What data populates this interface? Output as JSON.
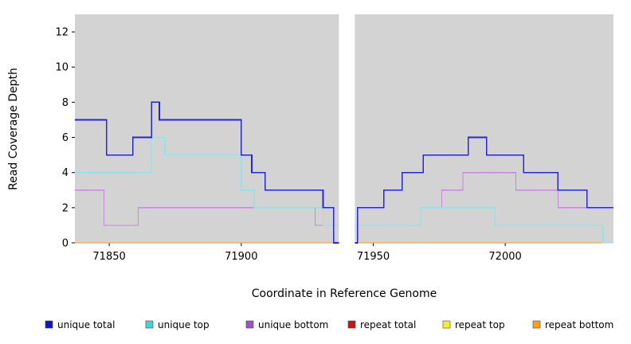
{
  "chart_data": {
    "type": "line",
    "style": "step",
    "title": "",
    "xlabel": "Coordinate in Reference Genome",
    "ylabel": "Read Coverage Depth",
    "xlim": [
      71837,
      72041
    ],
    "ylim": [
      0,
      13
    ],
    "xticks": [
      71850,
      71900,
      71950,
      72000
    ],
    "yticks": [
      0,
      2,
      4,
      6,
      8,
      10,
      12
    ],
    "panel_color": "#d3d3d3",
    "background_color": "#ffffff",
    "gap_x": [
      71937,
      71943
    ],
    "legend": [
      {
        "label": "unique total",
        "color": "#1515c8"
      },
      {
        "label": "unique top",
        "color": "#3fd6d6"
      },
      {
        "label": "unique bottom",
        "color": "#a050cc"
      },
      {
        "label": "repeat total",
        "color": "#c81616"
      },
      {
        "label": "repeat top",
        "color": "#f2ef30"
      },
      {
        "label": "repeat bottom",
        "color": "#ff9e1b"
      }
    ],
    "series": [
      {
        "name": "repeat total",
        "color": "#c81616",
        "width": 1.2,
        "segments": [
          {
            "steps": [
              [
                71837,
                0
              ]
            ],
            "end": 71937
          },
          {
            "steps": [
              [
                71943,
                0
              ]
            ],
            "end": 72041
          }
        ]
      },
      {
        "name": "repeat top",
        "color": "#f2ef30",
        "width": 1.2,
        "segments": [
          {
            "steps": [
              [
                71837,
                0
              ]
            ],
            "end": 71937
          },
          {
            "steps": [
              [
                71943,
                0
              ]
            ],
            "end": 72041
          }
        ]
      },
      {
        "name": "repeat bottom",
        "color": "#ff9e1b",
        "width": 1.2,
        "segments": [
          {
            "steps": [
              [
                71837,
                0
              ]
            ],
            "end": 71937
          },
          {
            "steps": [
              [
                71943,
                0
              ]
            ],
            "end": 72041
          }
        ]
      },
      {
        "name": "unique bottom",
        "color": "#c08ad6",
        "width": 1.2,
        "segments": [
          {
            "steps": [
              [
                71837,
                3
              ],
              [
                71848,
                1
              ],
              [
                71861,
                2
              ],
              [
                71928,
                1
              ]
            ],
            "end": 71937
          },
          {
            "steps": [
              [
                71943,
                1
              ],
              [
                71968,
                2
              ],
              [
                71976,
                3
              ],
              [
                71984,
                4
              ],
              [
                72004,
                3
              ],
              [
                72020,
                2
              ]
            ],
            "end": 72041
          }
        ]
      },
      {
        "name": "unique top",
        "color": "#8fe2e8",
        "width": 1.2,
        "segments": [
          {
            "steps": [
              [
                71837,
                4
              ],
              [
                71866,
                6
              ],
              [
                71871,
                5
              ],
              [
                71900,
                3
              ],
              [
                71905,
                2
              ],
              [
                71931,
                1
              ]
            ],
            "end": 71937
          },
          {
            "steps": [
              [
                71943,
                1
              ],
              [
                71968,
                2
              ],
              [
                71996,
                1
              ],
              [
                72037,
                0
              ]
            ],
            "end": 72041
          }
        ]
      },
      {
        "name": "unique total",
        "color": "#2727d2",
        "width": 1.6,
        "segments": [
          {
            "steps": [
              [
                71837,
                7
              ],
              [
                71849,
                5
              ],
              [
                71859,
                6
              ],
              [
                71866,
                8
              ],
              [
                71869,
                7
              ],
              [
                71900,
                5
              ],
              [
                71904,
                4
              ],
              [
                71909,
                3
              ],
              [
                71931,
                2
              ],
              [
                71935,
                0
              ]
            ],
            "end": 71937
          },
          {
            "steps": [
              [
                71943,
                0
              ],
              [
                71944,
                2
              ],
              [
                71954,
                3
              ],
              [
                71961,
                4
              ],
              [
                71969,
                5
              ],
              [
                71986,
                6
              ],
              [
                71993,
                5
              ],
              [
                72007,
                4
              ],
              [
                72020,
                3
              ],
              [
                72031,
                2
              ]
            ],
            "end": 72041
          }
        ]
      }
    ]
  }
}
